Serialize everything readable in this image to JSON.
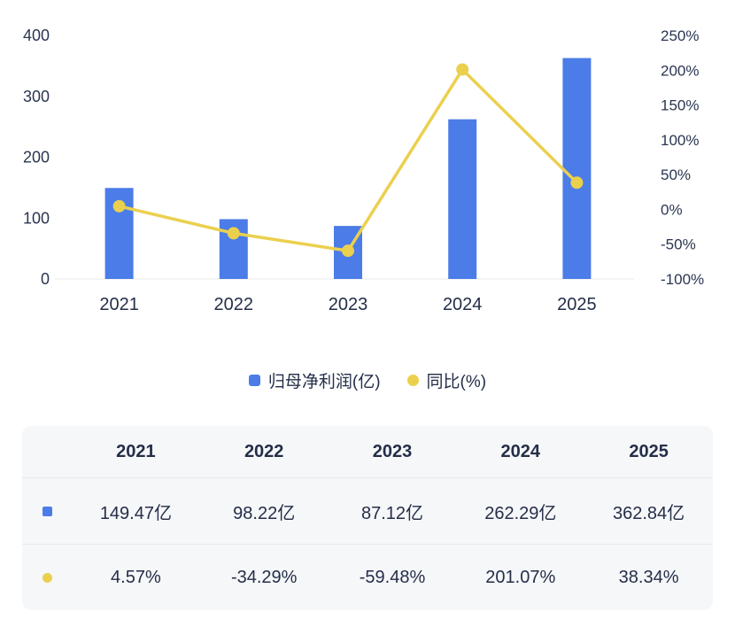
{
  "chart_data": {
    "type": "combo",
    "title": "",
    "categories": [
      "2021",
      "2022",
      "2023",
      "2024",
      "2025"
    ],
    "series": [
      {
        "name": "归母净利润(亿)",
        "type": "bar",
        "axis": "left",
        "color": "#4b7ce8",
        "values": [
          149.47,
          98.22,
          87.12,
          262.29,
          362.84
        ]
      },
      {
        "name": "同比(%)",
        "type": "line",
        "axis": "right",
        "color": "#ebd04e",
        "values": [
          4.57,
          -34.29,
          -59.48,
          201.07,
          38.34
        ]
      }
    ],
    "left_axis": {
      "min": 0,
      "max": 400,
      "ticks": [
        "0",
        "100",
        "200",
        "300",
        "400"
      ]
    },
    "right_axis": {
      "min": -100,
      "max": 250,
      "ticks": [
        "-100%",
        "-50%",
        "0%",
        "50%",
        "100%",
        "150%",
        "200%",
        "250%"
      ]
    },
    "grid": false,
    "legend_position": "bottom"
  },
  "legend": {
    "items": [
      {
        "label": "归母净利润(亿)",
        "color": "#4b7ce8",
        "shape": "square"
      },
      {
        "label": "同比(%)",
        "color": "#ebd04e",
        "shape": "circle"
      }
    ]
  },
  "table": {
    "header": [
      "2021",
      "2022",
      "2023",
      "2024",
      "2025"
    ],
    "rows": [
      {
        "marker_color": "#4b7ce8",
        "values": [
          "149.47亿",
          "98.22亿",
          "87.12亿",
          "262.29亿",
          "362.84亿"
        ]
      },
      {
        "marker_color": "#ebd04e",
        "values": [
          "4.57%",
          "-34.29%",
          "-59.48%",
          "201.07%",
          "38.34%"
        ]
      }
    ]
  },
  "colors": {
    "bar": "#4b7ce8",
    "line": "#ebd04e",
    "text": "#242e48",
    "table_bg": "#f6f7f9"
  }
}
